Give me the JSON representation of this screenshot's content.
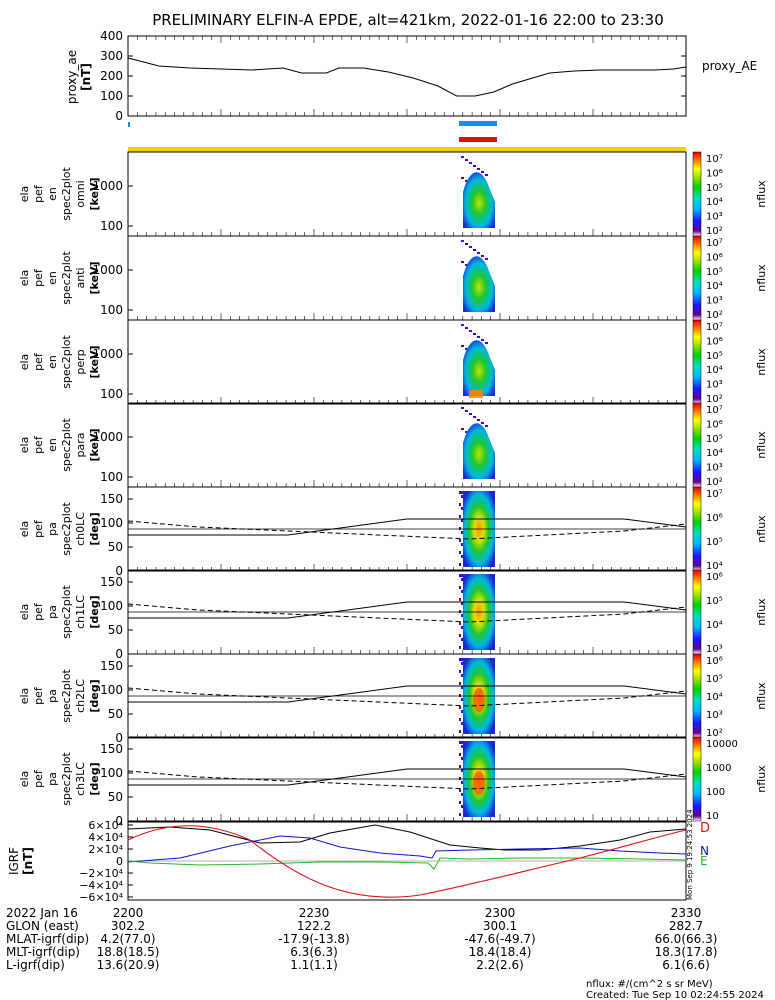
{
  "title": "PRELIMINARY ELFIN-A EPDE, alt=421km, 2022-01-16 22:00 to 23:30",
  "colors": {
    "bar_blue": "#2288ee",
    "bar_red": "#dd1111",
    "bar_yellow": "#f5d000",
    "igrf_d": "#dd1111",
    "igrf_n": "#1111cc",
    "igrf_e": "#22bb22",
    "igrf_total": "#000000"
  },
  "chart_data": [
    {
      "type": "line",
      "panel": "proxy_ae",
      "ylabel": [
        "proxy_ae",
        "[nT]"
      ],
      "series_label": "proxy_AE",
      "ylim": [
        0,
        400
      ],
      "yticks": [
        "400",
        "300",
        "200",
        "100",
        "0"
      ],
      "xlim": [
        0,
        90
      ],
      "x": [
        0,
        5,
        10,
        15,
        20,
        25,
        28,
        32,
        34,
        38,
        42,
        46,
        50,
        53,
        56,
        59,
        62,
        68,
        72,
        76,
        80,
        85,
        88,
        90
      ],
      "values": [
        290,
        250,
        240,
        235,
        230,
        240,
        215,
        215,
        240,
        240,
        220,
        190,
        150,
        100,
        100,
        120,
        160,
        215,
        225,
        230,
        230,
        230,
        235,
        245
      ]
    },
    {
      "type": "heatmap",
      "panel": "spec_omni",
      "ylabel": [
        "ela",
        "pef",
        "en",
        "spec2plot",
        "omni",
        "[keV]"
      ],
      "yticks": [
        "1000",
        "100"
      ],
      "ylim_kev": [
        60,
        6500
      ],
      "colorbar": {
        "label": "nflux",
        "ticks": [
          "10⁷",
          "10⁶",
          "10⁵",
          "10⁴",
          "10³",
          "10²"
        ]
      }
    },
    {
      "type": "heatmap",
      "panel": "spec_anti",
      "ylabel": [
        "ela",
        "pef",
        "en",
        "spec2plot",
        "anti",
        "[keV]"
      ],
      "yticks": [
        "1000",
        "100"
      ],
      "colorbar": {
        "label": "nflux",
        "ticks": [
          "10⁷",
          "10⁶",
          "10⁵",
          "10⁴",
          "10³",
          "10²"
        ]
      }
    },
    {
      "type": "heatmap",
      "panel": "spec_perp",
      "ylabel": [
        "ela",
        "pef",
        "en",
        "spec2plot",
        "perp",
        "[keV]"
      ],
      "yticks": [
        "1000",
        "100"
      ],
      "colorbar": {
        "label": "nflux",
        "ticks": [
          "10⁷",
          "10⁶",
          "10⁵",
          "10⁴",
          "10³",
          "10²"
        ]
      }
    },
    {
      "type": "heatmap",
      "panel": "spec_para",
      "ylabel": [
        "ela",
        "pef",
        "en",
        "spec2plot",
        "para",
        "[keV]"
      ],
      "yticks": [
        "1000",
        "100"
      ],
      "colorbar": {
        "label": "nflux",
        "ticks": [
          "10⁷",
          "10⁶",
          "10⁵",
          "10⁴",
          "10³",
          "10²"
        ]
      }
    },
    {
      "type": "heatmap",
      "panel": "pa_ch0",
      "ylabel": [
        "ela",
        "pef",
        "pa",
        "spec2plot",
        "ch0LC",
        "[deg]"
      ],
      "yticks": [
        "150",
        "100",
        "50",
        "0"
      ],
      "ylim": [
        0,
        180
      ],
      "colorbar": {
        "label": "nflux",
        "ticks": [
          "10⁷",
          "10⁶",
          "10⁵",
          "10⁴"
        ]
      }
    },
    {
      "type": "heatmap",
      "panel": "pa_ch1",
      "ylabel": [
        "ela",
        "pef",
        "pa",
        "spec2plot",
        "ch1LC",
        "[deg]"
      ],
      "yticks": [
        "150",
        "100",
        "50",
        "0"
      ],
      "ylim": [
        0,
        180
      ],
      "colorbar": {
        "label": "nflux",
        "ticks": [
          "10⁶",
          "10⁵",
          "10⁴",
          "10³"
        ]
      }
    },
    {
      "type": "heatmap",
      "panel": "pa_ch2",
      "ylabel": [
        "ela",
        "pef",
        "pa",
        "spec2plot",
        "ch2LC",
        "[deg]"
      ],
      "yticks": [
        "150",
        "100",
        "50",
        "0"
      ],
      "ylim": [
        0,
        180
      ],
      "colorbar": {
        "label": "nflux",
        "ticks": [
          "10⁶",
          "10⁵",
          "10⁴",
          "10³",
          "10²"
        ]
      }
    },
    {
      "type": "heatmap",
      "panel": "pa_ch3",
      "ylabel": [
        "ela",
        "pef",
        "pa",
        "spec2plot",
        "ch3LC",
        "[deg]"
      ],
      "yticks": [
        "150",
        "100",
        "50",
        "0"
      ],
      "ylim": [
        0,
        180
      ],
      "colorbar": {
        "label": "nflux",
        "ticks": [
          "10000",
          "1000",
          "100",
          "10"
        ]
      }
    },
    {
      "type": "line",
      "panel": "igrf",
      "ylabel": [
        "IGRF",
        "[nT]"
      ],
      "ylim": [
        -60000,
        60000
      ],
      "yticks": [
        "6×10⁴",
        "4×10⁴",
        "2×10⁴",
        "0",
        "−2×10⁴",
        "−4×10⁴",
        "−6×10⁴"
      ],
      "legend": [
        "D",
        "N",
        "E"
      ]
    }
  ],
  "axis": {
    "date_label": "2022 Jan 16",
    "rows": [
      {
        "label": "",
        "values": [
          "2200",
          "2230",
          "2300",
          "2330"
        ]
      },
      {
        "label": "GLON (east)",
        "values": [
          "302.2",
          "122.2",
          "300.1",
          "282.7"
        ]
      },
      {
        "label": "MLAT-igrf(dip)",
        "values": [
          "4.2(77.0)",
          "-17.9(-13.8)",
          "-47.6(-49.7)",
          "66.0(66.3)"
        ]
      },
      {
        "label": "MLT-igrf(dip)",
        "values": [
          "18.8(18.5)",
          "6.3(6.3)",
          "18.4(18.4)",
          "18.3(17.8)"
        ]
      },
      {
        "label": "L-igrf(dip)",
        "values": [
          "13.6(20.9)",
          "1.1(1.1)",
          "2.2(2.6)",
          "6.1(6.6)"
        ]
      }
    ]
  },
  "footer": {
    "units": "nflux: #/(cm^2 s sr MeV)",
    "created": "Created: Tue Sep 10 02:24:55 2024",
    "side_stamp": "Mon Sep 9 19:24:53 2024"
  }
}
